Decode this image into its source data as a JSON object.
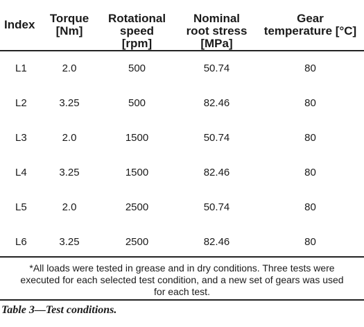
{
  "table": {
    "headers": [
      [
        "Index"
      ],
      [
        "Torque",
        "[Nm]"
      ],
      [
        "Rotational",
        "speed",
        "[rpm]"
      ],
      [
        "Nominal",
        "root stress",
        "[MPa]"
      ],
      [
        "Gear",
        "temperature [°C]"
      ]
    ],
    "rows": [
      [
        "L1",
        "2.0",
        "500",
        "50.74",
        "80"
      ],
      [
        "L2",
        "3.25",
        "500",
        "82.46",
        "80"
      ],
      [
        "L3",
        "2.0",
        "1500",
        "50.74",
        "80"
      ],
      [
        "L4",
        "3.25",
        "1500",
        "82.46",
        "80"
      ],
      [
        "L5",
        "2.0",
        "2500",
        "50.74",
        "80"
      ],
      [
        "L6",
        "3.25",
        "2500",
        "82.46",
        "80"
      ]
    ]
  },
  "footnote": "*All loads were tested in grease and in dry conditions. Three tests were executed for each selected test condition, and a new set of gears was used for each test.",
  "caption": "Table 3—Test conditions."
}
